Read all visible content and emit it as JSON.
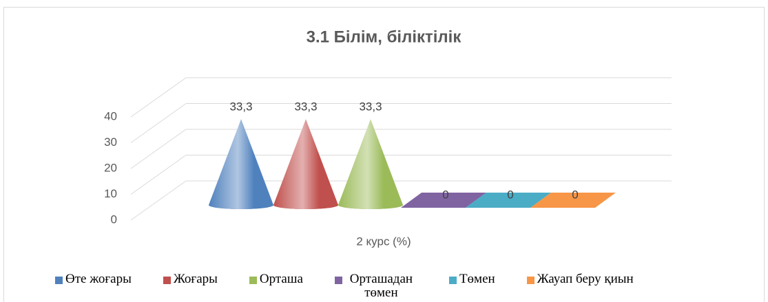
{
  "chart_data": {
    "type": "cone3d",
    "title": "3.1 Білім, біліктілік",
    "categories": [
      "2 курс (%)"
    ],
    "series": [
      {
        "name": "Өте жоғары",
        "color": "#4f81bd",
        "values": [
          33.3
        ],
        "value_labels": [
          "33,3"
        ]
      },
      {
        "name": "Жоғары",
        "color": "#c0504d",
        "values": [
          33.3
        ],
        "value_labels": [
          "33,3"
        ]
      },
      {
        "name": "Орташа",
        "color": "#9bbb59",
        "values": [
          33.3
        ],
        "value_labels": [
          "33,3"
        ]
      },
      {
        "name": "Орташадан төмен",
        "color": "#8064a2",
        "values": [
          0
        ]
      },
      {
        "name": "Төмен",
        "color": "#4bacc6",
        "values": [
          0
        ]
      },
      {
        "name": "Жауап беру қиын",
        "color": "#f79646",
        "values": [
          0
        ]
      }
    ],
    "ylim": [
      0,
      40
    ],
    "yticks": [
      0,
      10,
      20,
      30,
      40
    ],
    "grid": true,
    "legend": "bottom"
  }
}
